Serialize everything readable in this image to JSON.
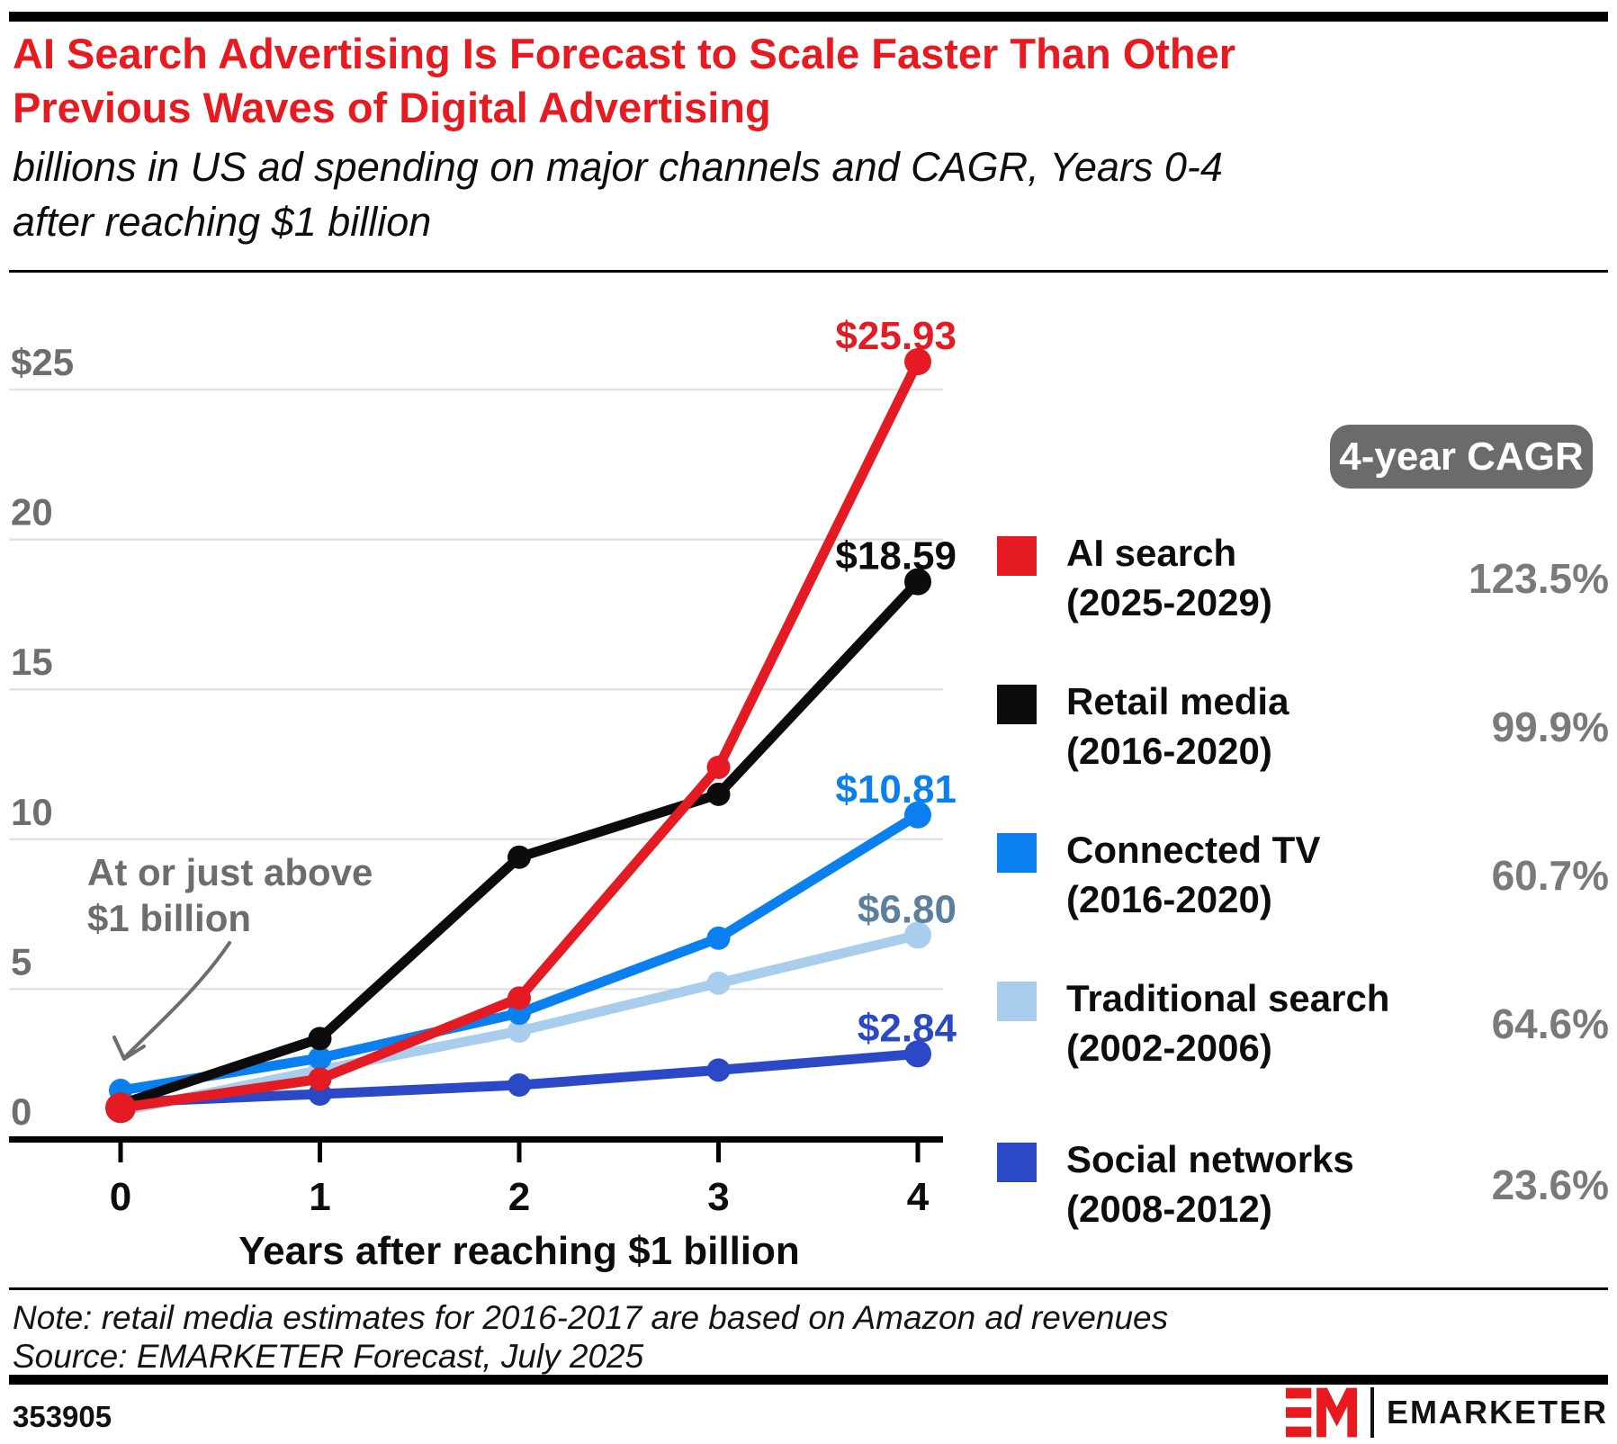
{
  "header": {
    "title": "AI Search Advertising Is Forecast to Scale Faster Than Other\nPrevious Waves of Digital Advertising",
    "subtitle": "billions in US ad spending on major channels and CAGR, Years 0-4\nafter reaching $1 billion"
  },
  "chart_data": {
    "type": "line",
    "title": "AI Search Advertising Is Forecast to Scale Faster Than Other Previous Waves of Digital Advertising",
    "subtitle": "billions in US ad spending on major channels and CAGR, Years 0-4 after reaching $1 billion",
    "x": [
      0,
      1,
      2,
      3,
      4
    ],
    "x_tick_labels": [
      "0",
      "1",
      "2",
      "3",
      "4"
    ],
    "xlabel": "Years after reaching $1 billion",
    "ylabel": "billions in US ad spending",
    "ylim": [
      0,
      27
    ],
    "grid": "horizontal",
    "legend_position": "right",
    "cagr_badge_label": "4-year CAGR",
    "yticks": [
      {
        "value": 0,
        "label": "0"
      },
      {
        "value": 5,
        "label": "5"
      },
      {
        "value": 10,
        "label": "10"
      },
      {
        "value": 15,
        "label": "15"
      },
      {
        "value": 20,
        "label": "20"
      },
      {
        "value": 25,
        "label": "$25"
      }
    ],
    "series": [
      {
        "name": "AI search",
        "period": "(2025-2029)",
        "cagr": "123.5%",
        "color": "#e41b23",
        "label_color": "#e41b23",
        "end_label": "$25.93",
        "values": [
          1.04,
          2.0,
          4.7,
          12.4,
          25.93
        ]
      },
      {
        "name": "Retail media",
        "period": "(2016-2020)",
        "cagr": "99.9%",
        "color": "#0c0c0c",
        "label_color": "#0c0c0c",
        "end_label": "$18.59",
        "values": [
          1.16,
          3.35,
          9.4,
          11.5,
          18.59
        ]
      },
      {
        "name": "Connected TV",
        "period": "(2016-2020)",
        "cagr": "60.7%",
        "color": "#0a80f0",
        "label_color": "#0a80f0",
        "end_label": "$10.81",
        "values": [
          1.62,
          2.7,
          4.2,
          6.7,
          10.81
        ]
      },
      {
        "name": "Traditional search",
        "period": "(2002-2006)",
        "cagr": "64.6%",
        "color": "#a9cdec",
        "label_color": "#5d7f9e",
        "end_label": "$6.80",
        "values": [
          0.93,
          2.3,
          3.6,
          5.2,
          6.8
        ]
      },
      {
        "name": "Social networks",
        "period": "(2008-2012)",
        "cagr": "23.6%",
        "color": "#2b49c6",
        "label_color": "#2b49c6",
        "end_label": "$2.84",
        "values": [
          1.22,
          1.5,
          1.8,
          2.3,
          2.84
        ]
      }
    ],
    "annotation": "At or just above\n$1 billion"
  },
  "footer": {
    "note": "Note: retail media estimates for 2016-2017 are based on Amazon ad revenues",
    "source": "Source: EMARKETER Forecast, July 2025",
    "chart_id": "353905",
    "brand": "EMARKETER",
    "brand_red": "#e8191f"
  }
}
